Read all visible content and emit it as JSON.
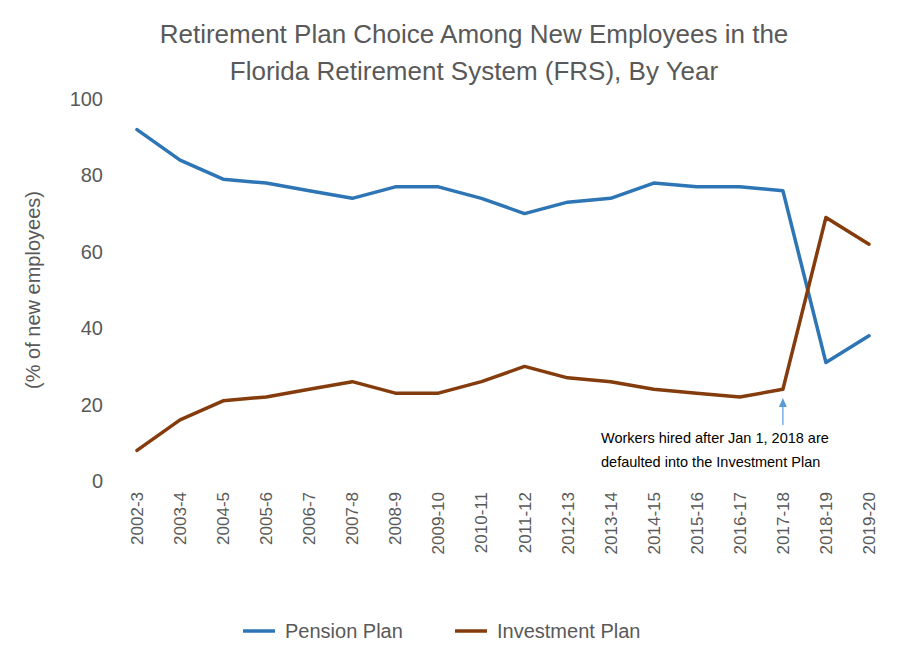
{
  "chart_data": {
    "type": "line",
    "title": [
      "Retirement Plan Choice Among New Employees in the",
      "Florida Retirement System (FRS), By Year"
    ],
    "y_label": "(% of new employees)",
    "categories": [
      "2002-3",
      "2003-4",
      "2004-5",
      "2005-6",
      "2006-7",
      "2007-8",
      "2008-9",
      "2009-10",
      "2010-11",
      "2011-12",
      "2012-13",
      "2013-14",
      "2014-15",
      "2015-16",
      "2016-17",
      "2017-18",
      "2018-19",
      "2019-20"
    ],
    "series": [
      {
        "name": "Pension Plan",
        "color": "#2e75b6",
        "values": [
          92,
          84,
          79,
          78,
          76,
          74,
          77,
          77,
          74,
          70,
          73,
          74,
          78,
          77,
          77,
          76,
          31,
          38
        ]
      },
      {
        "name": "Investment Plan",
        "color": "#843c0c",
        "values": [
          8,
          16,
          21,
          22,
          24,
          26,
          23,
          23,
          26,
          30,
          27,
          26,
          24,
          23,
          22,
          24,
          69,
          62
        ]
      }
    ],
    "ylim": [
      0,
      100
    ],
    "yticks": [
      0,
      20,
      40,
      60,
      80,
      100
    ],
    "grid": false,
    "legend": "bottom",
    "annotation": {
      "lines": [
        "Workers hired after Jan 1, 2018 are",
        "defaulted into the Investment Plan"
      ],
      "category": "2017-18"
    }
  }
}
